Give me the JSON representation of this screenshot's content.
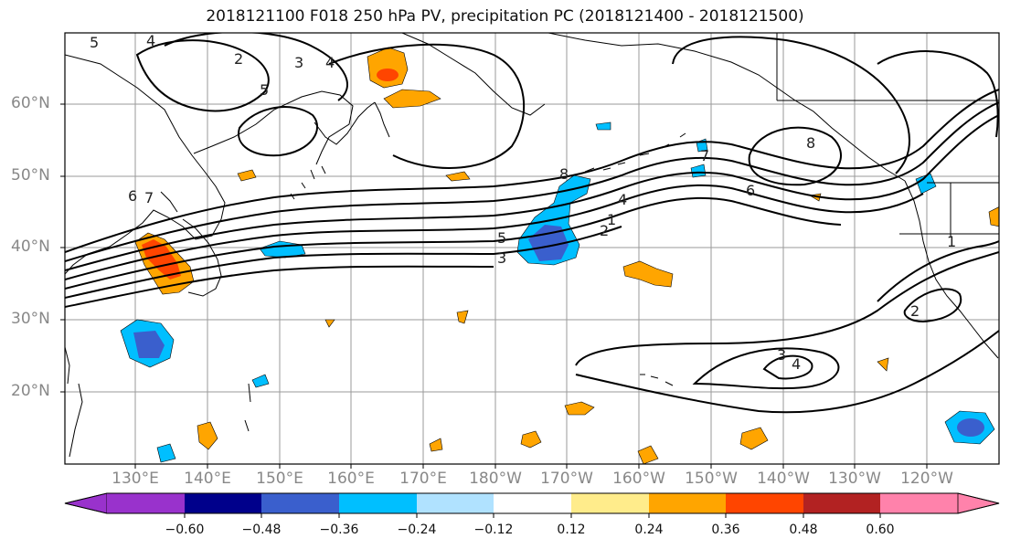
{
  "title": "2018121100 F018 250 hPa PV, precipitation PC (2018121400 - 2018121500)",
  "lat_labels": [
    "60°N",
    "50°N",
    "40°N",
    "30°N",
    "20°N"
  ],
  "lon_labels": [
    "130°E",
    "140°E",
    "150°E",
    "160°E",
    "170°E",
    "180°W",
    "170°W",
    "160°W",
    "150°W",
    "140°W",
    "130°W",
    "120°W"
  ],
  "colorbar": {
    "colors": [
      "#9932cc",
      "#00008b",
      "#3a5fcd",
      "#00bfff",
      "#b0e2ff",
      "#ffffff",
      "#ffec8b",
      "#ffa500",
      "#ff4500",
      "#b22222",
      "#ff82ab"
    ],
    "ticks": [
      "−0.60",
      "−0.48",
      "−0.36",
      "−0.24",
      "−0.12",
      "0.12",
      "0.24",
      "0.36",
      "0.48",
      "0.60"
    ]
  },
  "contour_labels": [
    "5",
    "4",
    "2",
    "3",
    "4",
    "5",
    "6",
    "7",
    "8",
    "5",
    "4",
    "3",
    "2",
    "1",
    "6",
    "7",
    "8",
    "3",
    "4",
    "1",
    "2"
  ]
}
